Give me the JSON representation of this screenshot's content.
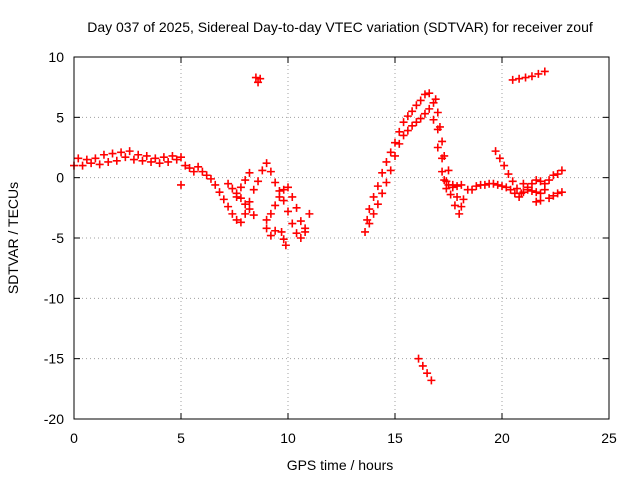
{
  "chart_data": {
    "type": "scatter",
    "title": "Day 037 of 2025, Sidereal Day-to-day VTEC variation (SDTVAR) for receiver zouf",
    "xlabel": "GPS time / hours",
    "ylabel": "SDTVAR / TECUs",
    "xlim": [
      0,
      25
    ],
    "ylim": [
      -20,
      10
    ],
    "xticks": [
      0,
      5,
      10,
      15,
      20,
      25
    ],
    "yticks": [
      -20,
      -15,
      -10,
      -5,
      0,
      5,
      10
    ],
    "grid": true,
    "marker": "+",
    "series_color": "#ff0000",
    "series": [
      {
        "name": "SDTVAR",
        "segments": [
          [
            [
              0.0,
              1.0
            ],
            [
              0.2,
              1.6
            ],
            [
              0.4,
              1.0
            ],
            [
              0.6,
              1.5
            ],
            [
              0.8,
              1.2
            ],
            [
              1.0,
              1.6
            ],
            [
              1.2,
              1.1
            ],
            [
              1.4,
              1.9
            ],
            [
              1.6,
              1.3
            ],
            [
              1.8,
              2.0
            ],
            [
              2.0,
              1.4
            ],
            [
              2.2,
              2.1
            ],
            [
              2.4,
              1.7
            ],
            [
              2.6,
              2.2
            ],
            [
              2.8,
              1.5
            ],
            [
              3.0,
              1.9
            ],
            [
              3.2,
              1.4
            ],
            [
              3.4,
              1.8
            ],
            [
              3.6,
              1.3
            ],
            [
              3.8,
              1.6
            ],
            [
              4.0,
              1.2
            ],
            [
              4.2,
              1.7
            ],
            [
              4.4,
              1.3
            ],
            [
              4.6,
              1.8
            ],
            [
              4.8,
              1.5
            ],
            [
              5.0,
              1.7
            ],
            [
              5.2,
              1.0
            ],
            [
              5.4,
              0.8
            ],
            [
              5.6,
              0.5
            ],
            [
              5.8,
              0.9
            ],
            [
              6.0,
              0.5
            ],
            [
              6.2,
              0.2
            ],
            [
              6.4,
              -0.1
            ],
            [
              6.6,
              -0.6
            ],
            [
              6.8,
              -1.2
            ],
            [
              7.0,
              -1.8
            ],
            [
              7.2,
              -2.4
            ],
            [
              7.4,
              -3.0
            ],
            [
              7.6,
              -3.5
            ],
            [
              7.8,
              -3.7
            ],
            [
              8.0,
              -3.0
            ],
            [
              8.2,
              -2.0
            ],
            [
              8.4,
              -1.0
            ],
            [
              8.6,
              -0.3
            ],
            [
              8.8,
              0.6
            ],
            [
              9.0,
              1.2
            ],
            [
              9.2,
              0.5
            ],
            [
              9.4,
              -0.4
            ],
            [
              9.6,
              -1.1
            ],
            [
              9.8,
              -1.9
            ],
            [
              10.0,
              -2.8
            ],
            [
              10.2,
              -3.8
            ],
            [
              10.4,
              -4.6
            ],
            [
              10.6,
              -5.0
            ],
            [
              10.8,
              -4.2
            ],
            [
              11.0,
              -3.0
            ]
          ],
          [
            [
              5.0,
              -0.6
            ]
          ],
          [
            [
              7.2,
              -0.5
            ],
            [
              7.4,
              -0.9
            ],
            [
              7.6,
              -1.3
            ],
            [
              7.8,
              -1.7
            ],
            [
              8.0,
              -2.2
            ],
            [
              8.2,
              -2.6
            ],
            [
              8.4,
              -3.1
            ]
          ],
          [
            [
              7.6,
              -1.6
            ],
            [
              7.8,
              -0.8
            ],
            [
              8.0,
              -0.2
            ],
            [
              8.2,
              0.4
            ]
          ],
          [
            [
              9.0,
              -3.5
            ],
            [
              9.2,
              -3.0
            ],
            [
              9.4,
              -2.3
            ],
            [
              9.6,
              -1.6
            ],
            [
              9.8,
              -1.0
            ],
            [
              10.0,
              -0.8
            ],
            [
              10.2,
              -1.6
            ],
            [
              10.4,
              -2.5
            ],
            [
              10.6,
              -3.6
            ],
            [
              10.8,
              -4.5
            ]
          ],
          [
            [
              9.0,
              -4.2
            ],
            [
              9.2,
              -4.8
            ],
            [
              9.4,
              -4.4
            ]
          ],
          [
            [
              9.7,
              -4.5
            ],
            [
              9.8,
              -5.1
            ],
            [
              9.9,
              -5.6
            ]
          ],
          [
            [
              8.5,
              8.3
            ],
            [
              8.6,
              7.9
            ],
            [
              8.7,
              8.2
            ]
          ],
          [
            [
              13.6,
              -4.5
            ],
            [
              13.7,
              -3.5
            ],
            [
              13.8,
              -2.6
            ],
            [
              14.0,
              -1.6
            ],
            [
              14.2,
              -0.7
            ],
            [
              14.4,
              0.4
            ],
            [
              14.6,
              1.3
            ],
            [
              14.8,
              2.1
            ],
            [
              15.0,
              2.9
            ],
            [
              15.2,
              3.8
            ],
            [
              15.4,
              4.6
            ],
            [
              15.6,
              5.1
            ],
            [
              15.8,
              5.5
            ],
            [
              16.0,
              6.0
            ],
            [
              16.2,
              6.4
            ],
            [
              16.4,
              6.9
            ],
            [
              16.6,
              7.0
            ],
            [
              16.8,
              6.2
            ],
            [
              17.0,
              4.0
            ],
            [
              17.2,
              1.6
            ],
            [
              17.4,
              -0.3
            ],
            [
              17.6,
              -1.4
            ],
            [
              17.8,
              -2.3
            ],
            [
              18.0,
              -3.0
            ],
            [
              18.2,
              -1.8
            ],
            [
              18.4,
              -1.0
            ],
            [
              18.6,
              -1.0
            ],
            [
              18.8,
              -0.7
            ],
            [
              19.0,
              -0.6
            ],
            [
              19.2,
              -0.6
            ],
            [
              19.4,
              -0.5
            ],
            [
              19.6,
              -0.5
            ],
            [
              19.8,
              -0.6
            ],
            [
              20.0,
              -0.7
            ],
            [
              20.2,
              -0.8
            ],
            [
              20.4,
              -1.0
            ],
            [
              20.6,
              -1.3
            ],
            [
              20.8,
              -1.6
            ],
            [
              21.0,
              -1.2
            ],
            [
              21.2,
              -1.0
            ],
            [
              21.4,
              -1.1
            ],
            [
              21.6,
              -1.2
            ],
            [
              21.8,
              -1.3
            ],
            [
              22.0,
              -1.0
            ]
          ],
          [
            [
              13.8,
              -3.8
            ],
            [
              14.0,
              -3.0
            ],
            [
              14.2,
              -2.2
            ],
            [
              14.4,
              -1.3
            ],
            [
              14.6,
              -0.4
            ],
            [
              14.8,
              0.6
            ],
            [
              15.0,
              1.8
            ],
            [
              15.2,
              2.8
            ],
            [
              15.4,
              3.5
            ],
            [
              15.6,
              3.9
            ],
            [
              15.8,
              4.3
            ],
            [
              16.0,
              4.6
            ],
            [
              16.2,
              4.9
            ],
            [
              16.4,
              5.3
            ],
            [
              16.6,
              5.7
            ],
            [
              16.8,
              4.8
            ],
            [
              17.0,
              2.5
            ],
            [
              17.2,
              0.5
            ],
            [
              17.4,
              -0.9
            ]
          ],
          [
            [
              16.9,
              6.5
            ],
            [
              17.0,
              5.4
            ],
            [
              17.1,
              4.2
            ],
            [
              17.2,
              3.0
            ],
            [
              17.3,
              1.8
            ],
            [
              17.5,
              0.6
            ],
            [
              17.7,
              -0.6
            ],
            [
              17.9,
              -1.6
            ],
            [
              18.1,
              -2.4
            ]
          ],
          [
            [
              17.3,
              -0.2
            ],
            [
              17.5,
              -0.6
            ],
            [
              17.7,
              -0.8
            ],
            [
              17.9,
              -0.7
            ],
            [
              18.1,
              -0.6
            ]
          ],
          [
            [
              19.7,
              2.2
            ],
            [
              19.9,
              1.6
            ],
            [
              20.1,
              1.0
            ],
            [
              20.3,
              0.3
            ],
            [
              20.5,
              -0.3
            ],
            [
              20.7,
              -0.9
            ],
            [
              20.9,
              -1.3
            ]
          ],
          [
            [
              21.0,
              -0.5
            ],
            [
              21.2,
              -0.8
            ],
            [
              21.4,
              -0.5
            ],
            [
              21.6,
              -0.2
            ],
            [
              21.8,
              -0.3
            ],
            [
              22.0,
              -0.5
            ],
            [
              22.2,
              -0.2
            ],
            [
              22.4,
              0.2
            ],
            [
              22.6,
              0.3
            ],
            [
              22.8,
              0.6
            ]
          ],
          [
            [
              21.6,
              -2.0
            ],
            [
              21.8,
              -1.9
            ]
          ],
          [
            [
              22.2,
              -1.7
            ],
            [
              22.4,
              -1.5
            ],
            [
              22.6,
              -1.3
            ],
            [
              22.8,
              -1.2
            ]
          ],
          [
            [
              20.5,
              8.1
            ],
            [
              20.8,
              8.2
            ],
            [
              21.1,
              8.3
            ],
            [
              21.4,
              8.4
            ],
            [
              21.7,
              8.6
            ],
            [
              22.0,
              8.8
            ]
          ],
          [
            [
              16.1,
              -15.0
            ],
            [
              16.3,
              -15.6
            ],
            [
              16.5,
              -16.2
            ],
            [
              16.7,
              -16.8
            ]
          ]
        ]
      }
    ]
  }
}
